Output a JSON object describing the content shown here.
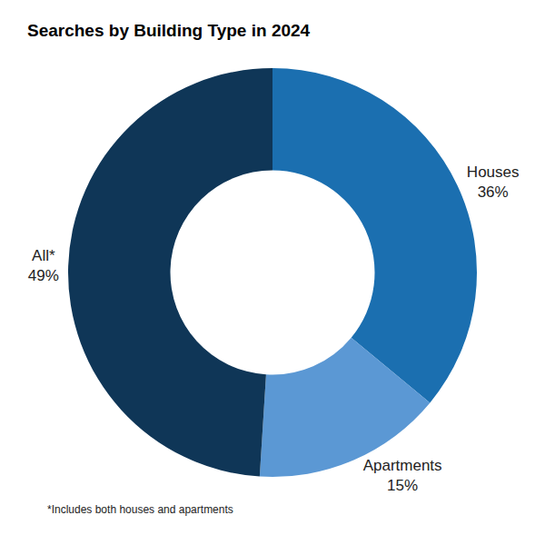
{
  "chart_data": {
    "type": "pie",
    "title": "Searches by Building Type in 2024",
    "categories": [
      "Houses",
      "Apartments",
      "All*"
    ],
    "values": [
      36,
      15,
      49
    ],
    "value_labels": [
      "36%",
      "15%",
      "49%"
    ],
    "colors": [
      "#1b6fb0",
      "#5b98d4",
      "#0f3657"
    ],
    "data_labels": true,
    "annotations": [
      "*Includes both houses and apartments"
    ]
  }
}
